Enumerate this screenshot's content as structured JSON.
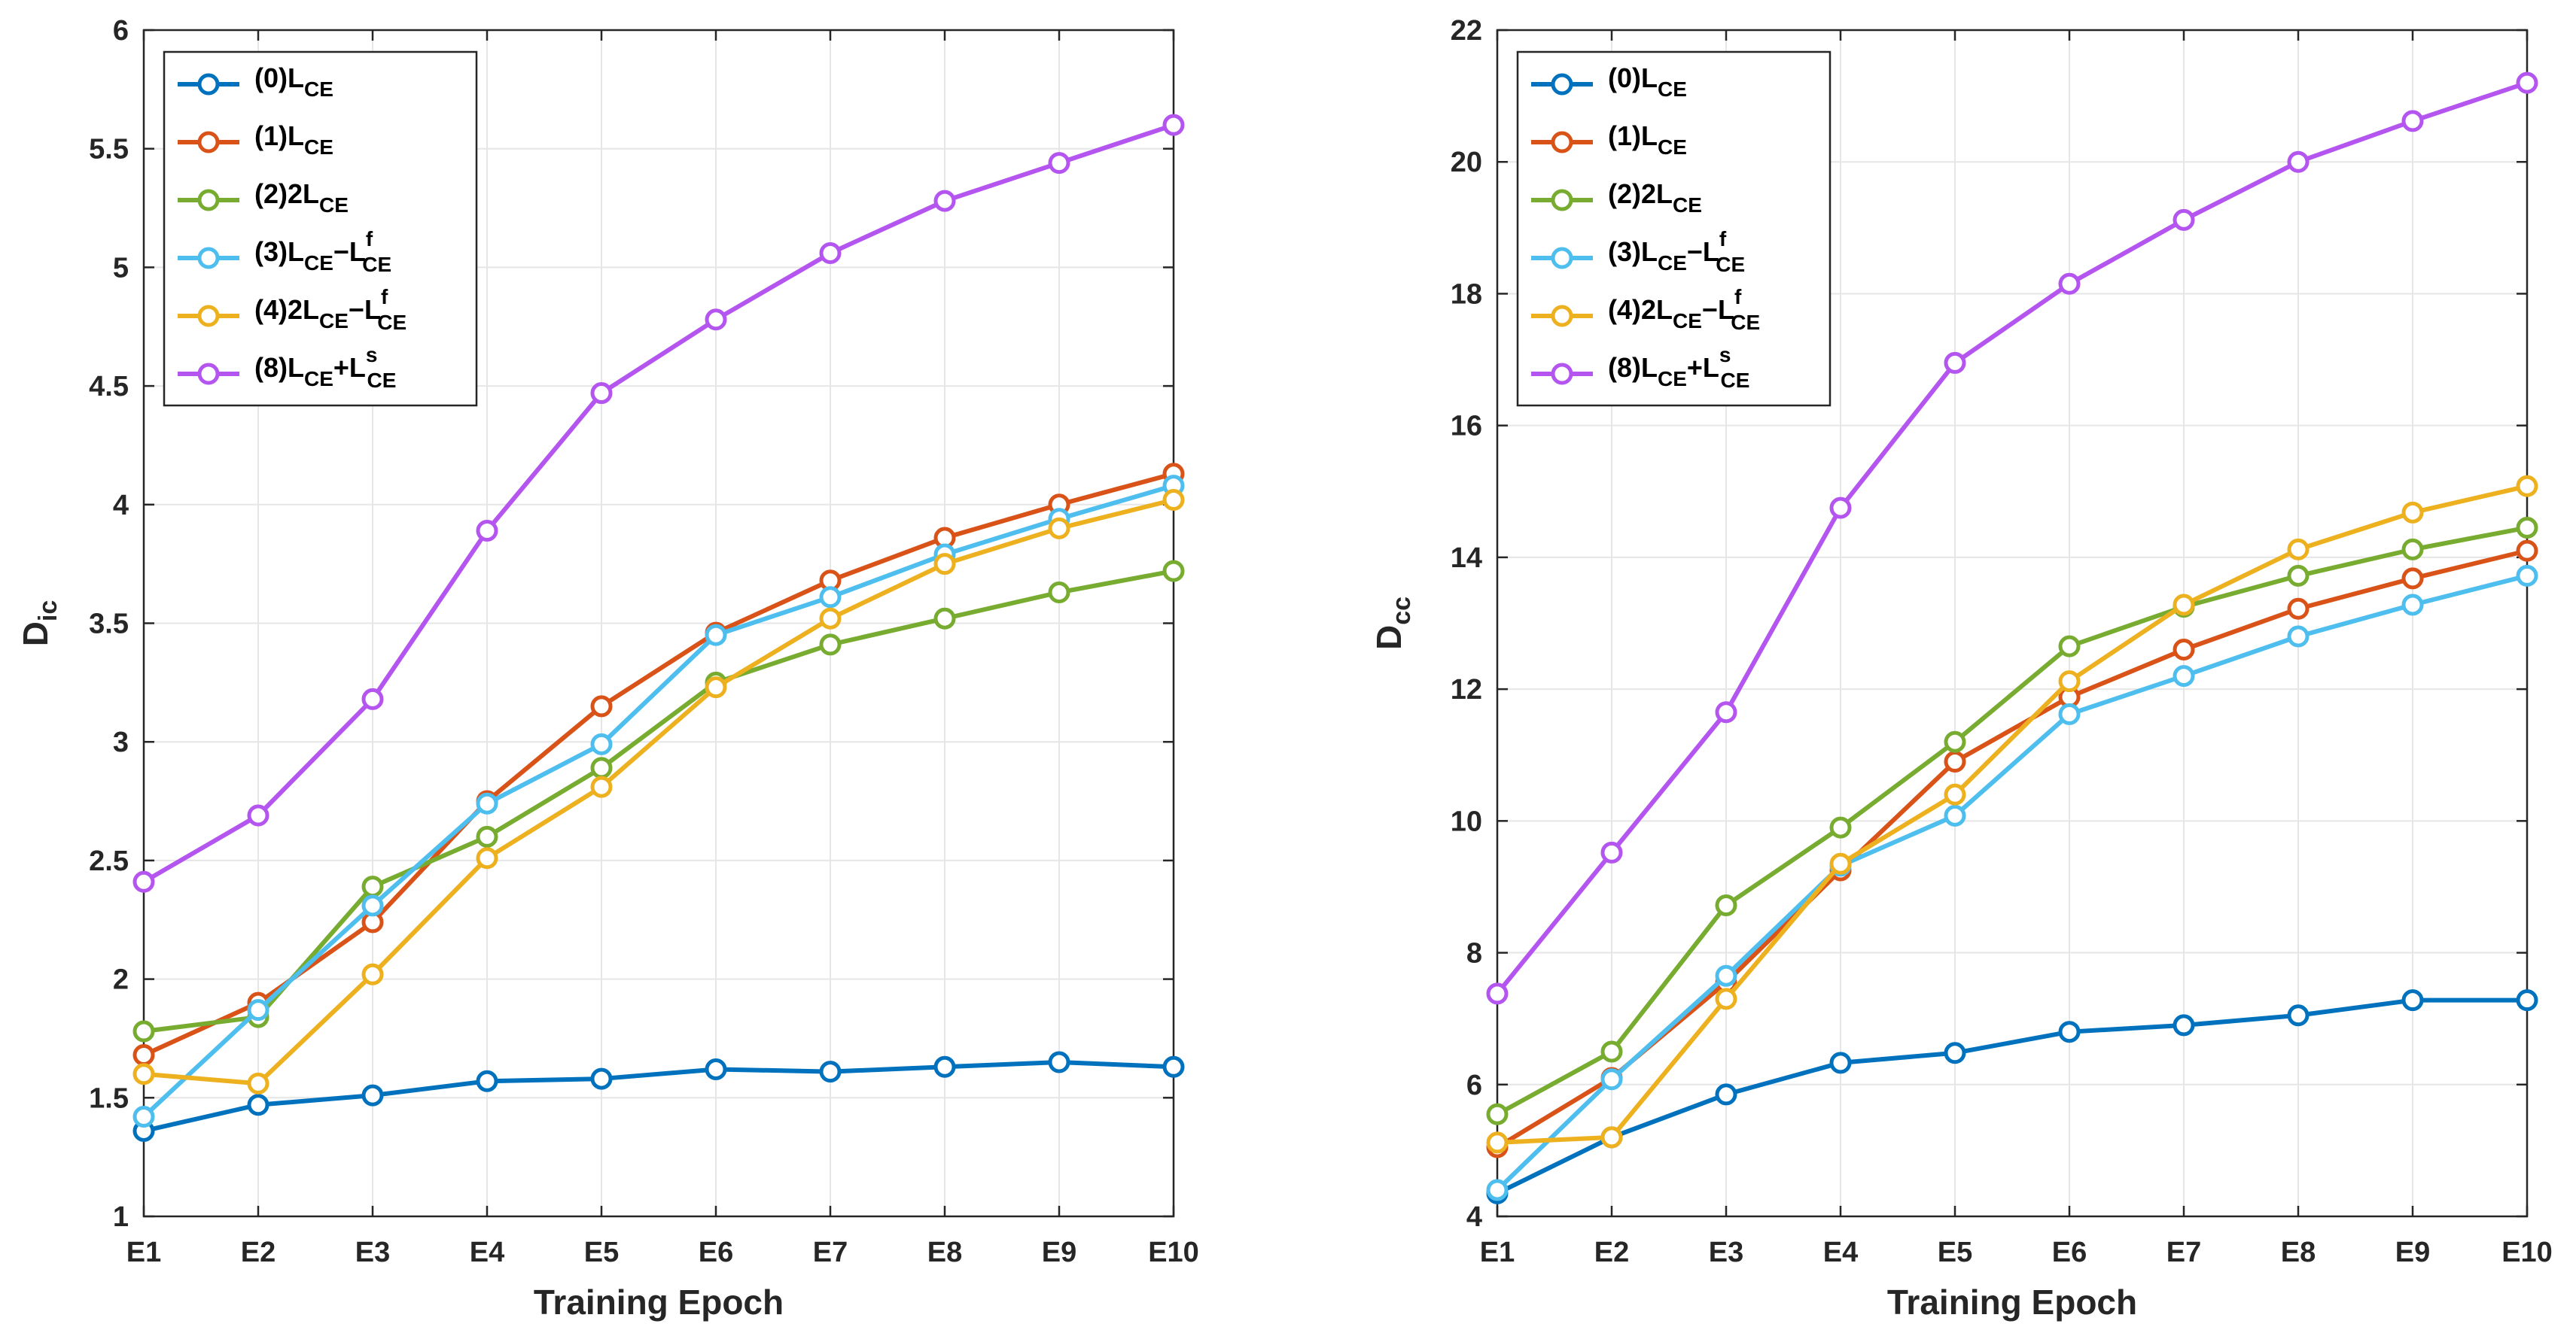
{
  "chart_data": [
    {
      "type": "line",
      "categories": [
        "E1",
        "E2",
        "E3",
        "E4",
        "E5",
        "E6",
        "E7",
        "E8",
        "E9",
        "E10"
      ],
      "xlabel": "Training Epoch",
      "ylabel": "D",
      "ylabel_sub": "ic",
      "ylim": [
        1,
        6
      ],
      "yticks": [
        1,
        1.5,
        2,
        2.5,
        3,
        3.5,
        4,
        4.5,
        5,
        5.5,
        6
      ],
      "ytick_labels": [
        "1",
        "1.5",
        "2",
        "2.5",
        "3",
        "3.5",
        "4",
        "4.5",
        "5",
        "5.5",
        "6"
      ],
      "grid": true,
      "legend_position": "top-left",
      "series": [
        {
          "id": "s0",
          "name": "(0)L",
          "sub": "CE",
          "color": "#0072BD",
          "values": [
            1.36,
            1.47,
            1.51,
            1.57,
            1.58,
            1.62,
            1.61,
            1.63,
            1.65,
            1.63
          ]
        },
        {
          "id": "s1",
          "name": "(1)L",
          "sub": "CE",
          "color": "#D95319",
          "values": [
            1.68,
            1.9,
            2.24,
            2.75,
            3.15,
            3.46,
            3.68,
            3.86,
            4.0,
            4.13
          ]
        },
        {
          "id": "s2",
          "name": "(2)2L",
          "sub": "CE",
          "color": "#77AC30",
          "values": [
            1.78,
            1.84,
            2.39,
            2.6,
            2.89,
            3.25,
            3.41,
            3.52,
            3.63,
            3.72
          ]
        },
        {
          "id": "s3",
          "name": "(3)L",
          "sub": "CE",
          "mid": "−L",
          "sup2": "f",
          "sub2": "CE",
          "color": "#4DBEEE",
          "values": [
            1.42,
            1.87,
            2.31,
            2.74,
            2.99,
            3.45,
            3.61,
            3.79,
            3.94,
            4.08
          ]
        },
        {
          "id": "s4",
          "name": "(4)2L",
          "sub": "CE",
          "mid": "−L",
          "sup2": "f",
          "sub2": "CE",
          "color": "#EDB120",
          "values": [
            1.6,
            1.56,
            2.02,
            2.51,
            2.81,
            3.23,
            3.52,
            3.75,
            3.9,
            4.02
          ]
        },
        {
          "id": "s8",
          "name": "(8)L",
          "sub": "CE",
          "mid": "+L",
          "sup2": "s",
          "sub2": "CE",
          "color": "#B555F0",
          "values": [
            2.41,
            2.69,
            3.18,
            3.89,
            4.47,
            4.78,
            5.06,
            5.28,
            5.44,
            5.6
          ]
        }
      ]
    },
    {
      "type": "line",
      "categories": [
        "E1",
        "E2",
        "E3",
        "E4",
        "E5",
        "E6",
        "E7",
        "E8",
        "E9",
        "E10"
      ],
      "xlabel": "Training Epoch",
      "ylabel": "D",
      "ylabel_sub": "cc",
      "ylim": [
        4,
        22
      ],
      "yticks": [
        4,
        6,
        8,
        10,
        12,
        14,
        16,
        18,
        20,
        22
      ],
      "ytick_labels": [
        "4",
        "6",
        "8",
        "10",
        "12",
        "14",
        "16",
        "18",
        "20",
        "22"
      ],
      "grid": true,
      "legend_position": "top-left",
      "series": [
        {
          "id": "s0",
          "name": "(0)L",
          "sub": "CE",
          "color": "#0072BD",
          "values": [
            4.35,
            5.2,
            5.85,
            6.33,
            6.48,
            6.8,
            6.9,
            7.05,
            7.28,
            7.28
          ]
        },
        {
          "id": "s1",
          "name": "(1)L",
          "sub": "CE",
          "color": "#D95319",
          "values": [
            5.05,
            6.1,
            7.55,
            9.25,
            10.9,
            11.88,
            12.6,
            13.22,
            13.68,
            14.1
          ]
        },
        {
          "id": "s2",
          "name": "(2)2L",
          "sub": "CE",
          "color": "#77AC30",
          "values": [
            5.55,
            6.5,
            8.72,
            9.9,
            11.2,
            12.65,
            13.25,
            13.72,
            14.12,
            14.45
          ]
        },
        {
          "id": "s3",
          "name": "(3)L",
          "sub": "CE",
          "mid": "−L",
          "sup2": "f",
          "sub2": "CE",
          "color": "#4DBEEE",
          "values": [
            4.4,
            6.08,
            7.65,
            9.32,
            10.08,
            11.62,
            12.2,
            12.8,
            13.28,
            13.72
          ]
        },
        {
          "id": "s4",
          "name": "(4)2L",
          "sub": "CE",
          "mid": "−L",
          "sup2": "f",
          "sub2": "CE",
          "color": "#EDB120",
          "values": [
            5.12,
            5.2,
            7.3,
            9.35,
            10.4,
            12.12,
            13.28,
            14.12,
            14.68,
            15.08
          ]
        },
        {
          "id": "s8",
          "name": "(8)L",
          "sub": "CE",
          "mid": "+L",
          "sup2": "s",
          "sub2": "CE",
          "color": "#B555F0",
          "values": [
            7.38,
            9.52,
            11.65,
            14.75,
            16.95,
            18.15,
            19.12,
            20.0,
            20.62,
            21.2
          ]
        }
      ]
    }
  ]
}
